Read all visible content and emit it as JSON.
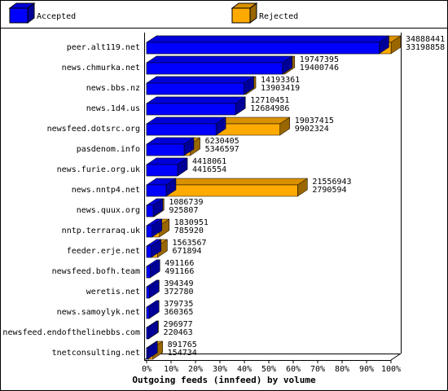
{
  "chart_data": {
    "type": "bar3d",
    "title": "Outgoing feeds (innfeed) by volume",
    "categories": [
      "peer.alt119.net",
      "news.chmurka.net",
      "news.bbs.nz",
      "news.1d4.us",
      "newsfeed.dotsrc.org",
      "pasdenom.info",
      "news.furie.org.uk",
      "news.nntp4.net",
      "news.quux.org",
      "nntp.terraraq.uk",
      "feeder.erje.net",
      "newsfeed.bofh.team",
      "weretis.net",
      "news.samoylyk.net",
      "newsfeed.endofthelinebbs.com",
      "tnetconsulting.net"
    ],
    "totals": [
      34888441,
      19747395,
      14193361,
      12710451,
      19037415,
      6230405,
      4418061,
      21556943,
      1086739,
      1830951,
      1563567,
      491166,
      394349,
      379735,
      296977,
      891765
    ],
    "series": [
      {
        "name": "Accepted",
        "color": "#0000ff",
        "values": [
          33198858,
          19400746,
          13903419,
          12684986,
          9902324,
          5346597,
          4416554,
          2790594,
          925807,
          785920,
          671894,
          491166,
          372780,
          360365,
          220463,
          154734
        ]
      },
      {
        "name": "Rejected",
        "color": "#ffaa00"
      }
    ],
    "xlim": [
      0,
      34888441
    ],
    "xticks": [
      {
        "value": 0,
        "label": "0%"
      },
      {
        "value": 3488844.1,
        "label": "10%"
      },
      {
        "value": 6977688.2,
        "label": "20%"
      },
      {
        "value": 10466532.3,
        "label": "30%"
      },
      {
        "value": 13955376.4,
        "label": "40%"
      },
      {
        "value": 17444220.5,
        "label": "50%"
      },
      {
        "value": 20933064.6,
        "label": "60%"
      },
      {
        "value": 24421908.7,
        "label": "70%"
      },
      {
        "value": 27910752.8,
        "label": "80%"
      },
      {
        "value": 31399596.9,
        "label": "90%"
      },
      {
        "value": 34888441,
        "label": "100%"
      }
    ]
  }
}
